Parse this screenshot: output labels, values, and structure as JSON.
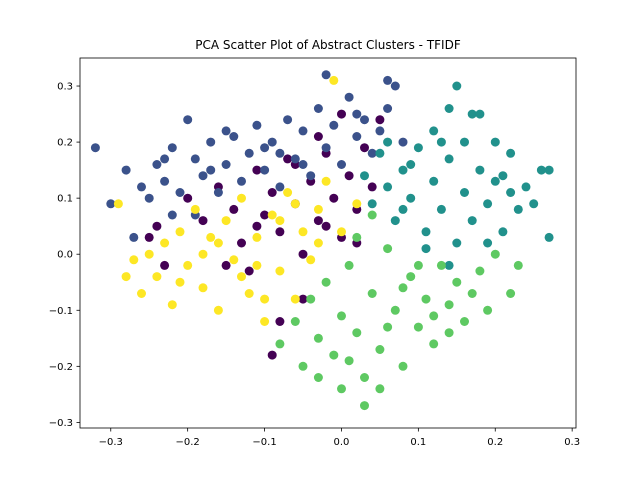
{
  "chart_data": {
    "type": "scatter",
    "title": "PCA Scatter Plot of Abstract Clusters - TFIDF",
    "xlabel": "",
    "ylabel": "",
    "xlim": [
      -0.34,
      0.305
    ],
    "ylim": [
      -0.31,
      0.35
    ],
    "x_ticks": [
      -0.3,
      -0.2,
      -0.1,
      0.0,
      0.1,
      0.2,
      0.3
    ],
    "x_tick_labels": [
      "−0.3",
      "−0.2",
      "−0.1",
      "0.0",
      "0.1",
      "0.2",
      "0.3"
    ],
    "y_ticks": [
      -0.3,
      -0.2,
      -0.1,
      0.0,
      0.1,
      0.2,
      0.3
    ],
    "y_tick_labels": [
      "−0.3",
      "−0.2",
      "−0.1",
      "0.0",
      "0.1",
      "0.2",
      "0.3"
    ],
    "grid": false,
    "legend": "none",
    "series": [
      {
        "color": "#440154",
        "points": [
          [
            -0.25,
            0.03
          ],
          [
            -0.24,
            0.05
          ],
          [
            -0.23,
            -0.02
          ],
          [
            -0.2,
            0.1
          ],
          [
            -0.18,
            0.06
          ],
          [
            -0.16,
            0.12
          ],
          [
            -0.14,
            0.08
          ],
          [
            -0.13,
            0.02
          ],
          [
            -0.12,
            -0.03
          ],
          [
            -0.11,
            0.15
          ],
          [
            -0.1,
            0.07
          ],
          [
            -0.09,
            0.11
          ],
          [
            -0.08,
            0.04
          ],
          [
            -0.07,
            0.17
          ],
          [
            -0.06,
            0.09
          ],
          [
            -0.05,
            0.0
          ],
          [
            -0.04,
            0.13
          ],
          [
            -0.03,
            0.06
          ],
          [
            -0.02,
            0.18
          ],
          [
            -0.01,
            0.1
          ],
          [
            0.0,
            0.03
          ],
          [
            0.01,
            0.14
          ],
          [
            0.02,
            0.08
          ],
          [
            0.03,
            0.19
          ],
          [
            0.04,
            0.12
          ],
          [
            -0.08,
            -0.12
          ],
          [
            -0.09,
            -0.18
          ],
          [
            -0.05,
            -0.08
          ],
          [
            -0.03,
            0.21
          ],
          [
            -0.06,
            0.16
          ],
          [
            0.0,
            0.25
          ],
          [
            0.05,
            0.24
          ],
          [
            -0.15,
            -0.02
          ],
          [
            -0.11,
            0.05
          ],
          [
            -0.02,
            0.05
          ],
          [
            0.02,
            0.02
          ]
        ]
      },
      {
        "color": "#3b528b",
        "points": [
          [
            -0.32,
            0.19
          ],
          [
            -0.3,
            0.09
          ],
          [
            -0.28,
            0.15
          ],
          [
            -0.27,
            0.03
          ],
          [
            -0.26,
            0.12
          ],
          [
            -0.25,
            0.1
          ],
          [
            -0.24,
            0.16
          ],
          [
            -0.23,
            0.13
          ],
          [
            -0.22,
            0.19
          ],
          [
            -0.21,
            0.11
          ],
          [
            -0.2,
            0.24
          ],
          [
            -0.19,
            0.17
          ],
          [
            -0.18,
            0.14
          ],
          [
            -0.17,
            0.2
          ],
          [
            -0.16,
            0.11
          ],
          [
            -0.15,
            0.16
          ],
          [
            -0.14,
            0.21
          ],
          [
            -0.13,
            0.13
          ],
          [
            -0.12,
            0.18
          ],
          [
            -0.11,
            0.23
          ],
          [
            -0.1,
            0.15
          ],
          [
            -0.09,
            0.2
          ],
          [
            -0.08,
            0.12
          ],
          [
            -0.07,
            0.24
          ],
          [
            -0.06,
            0.17
          ],
          [
            -0.05,
            0.22
          ],
          [
            -0.04,
            0.14
          ],
          [
            -0.03,
            0.26
          ],
          [
            -0.02,
            0.19
          ],
          [
            -0.01,
            0.23
          ],
          [
            0.0,
            0.16
          ],
          [
            0.01,
            0.28
          ],
          [
            0.02,
            0.21
          ],
          [
            0.03,
            0.24
          ],
          [
            0.04,
            0.18
          ],
          [
            0.05,
            0.22
          ],
          [
            0.06,
            0.26
          ],
          [
            -0.02,
            0.32
          ],
          [
            0.06,
            0.31
          ],
          [
            0.07,
            0.3
          ],
          [
            -0.19,
            0.07
          ],
          [
            -0.22,
            0.07
          ],
          [
            -0.17,
            0.15
          ],
          [
            -0.1,
            0.19
          ],
          [
            -0.05,
            0.16
          ],
          [
            0.08,
            0.2
          ],
          [
            -0.23,
            0.17
          ],
          [
            -0.15,
            0.22
          ],
          [
            -0.08,
            0.18
          ],
          [
            0.02,
            0.25
          ]
        ]
      },
      {
        "color": "#21918c",
        "points": [
          [
            0.03,
            0.14
          ],
          [
            0.04,
            0.09
          ],
          [
            0.05,
            0.18
          ],
          [
            0.06,
            0.12
          ],
          [
            0.07,
            0.06
          ],
          [
            0.08,
            0.15
          ],
          [
            0.09,
            0.1
          ],
          [
            0.1,
            0.19
          ],
          [
            0.11,
            0.04
          ],
          [
            0.12,
            0.13
          ],
          [
            0.13,
            0.08
          ],
          [
            0.14,
            0.17
          ],
          [
            0.15,
            0.02
          ],
          [
            0.16,
            0.11
          ],
          [
            0.17,
            0.06
          ],
          [
            0.18,
            0.15
          ],
          [
            0.19,
            0.09
          ],
          [
            0.2,
            0.13
          ],
          [
            0.21,
            0.04
          ],
          [
            0.22,
            0.11
          ],
          [
            0.23,
            0.08
          ],
          [
            0.24,
            0.12
          ],
          [
            0.25,
            0.09
          ],
          [
            0.26,
            0.15
          ],
          [
            0.27,
            0.15
          ],
          [
            0.27,
            0.03
          ],
          [
            0.15,
            0.3
          ],
          [
            0.14,
            0.26
          ],
          [
            0.17,
            0.25
          ],
          [
            0.18,
            0.25
          ],
          [
            0.12,
            0.22
          ],
          [
            0.09,
            0.16
          ],
          [
            0.06,
            0.2
          ],
          [
            0.11,
            0.01
          ],
          [
            0.14,
            -0.02
          ],
          [
            0.2,
            0.2
          ],
          [
            0.22,
            0.18
          ],
          [
            0.16,
            0.2
          ],
          [
            0.08,
            0.08
          ],
          [
            0.19,
            0.02
          ],
          [
            0.21,
            0.14
          ],
          [
            0.13,
            0.2
          ]
        ]
      },
      {
        "color": "#5ec962",
        "points": [
          [
            -0.08,
            -0.16
          ],
          [
            -0.06,
            -0.12
          ],
          [
            -0.05,
            -0.2
          ],
          [
            -0.04,
            -0.08
          ],
          [
            -0.03,
            -0.15
          ],
          [
            -0.02,
            -0.05
          ],
          [
            -0.01,
            -0.18
          ],
          [
            0.0,
            -0.11
          ],
          [
            0.01,
            -0.02
          ],
          [
            0.02,
            -0.14
          ],
          [
            0.03,
            -0.22
          ],
          [
            0.04,
            -0.07
          ],
          [
            0.05,
            -0.17
          ],
          [
            0.06,
            0.01
          ],
          [
            0.07,
            -0.1
          ],
          [
            0.08,
            -0.2
          ],
          [
            0.09,
            -0.04
          ],
          [
            0.1,
            -0.13
          ],
          [
            0.11,
            -0.08
          ],
          [
            0.12,
            -0.16
          ],
          [
            0.13,
            -0.02
          ],
          [
            0.14,
            -0.09
          ],
          [
            0.15,
            -0.05
          ],
          [
            0.16,
            -0.12
          ],
          [
            0.17,
            -0.07
          ],
          [
            0.18,
            -0.03
          ],
          [
            0.19,
            -0.1
          ],
          [
            0.2,
            0.0
          ],
          [
            0.22,
            -0.07
          ],
          [
            0.23,
            -0.02
          ],
          [
            0.03,
            -0.27
          ],
          [
            0.0,
            -0.24
          ],
          [
            0.04,
            0.07
          ],
          [
            0.02,
            0.03
          ],
          [
            0.06,
            -0.13
          ],
          [
            0.08,
            -0.06
          ],
          [
            -0.03,
            -0.22
          ],
          [
            0.05,
            -0.24
          ],
          [
            0.1,
            -0.02
          ],
          [
            0.12,
            -0.11
          ],
          [
            0.14,
            -0.14
          ],
          [
            0.01,
            -0.19
          ]
        ]
      },
      {
        "color": "#fde725",
        "points": [
          [
            -0.29,
            0.09
          ],
          [
            -0.28,
            -0.04
          ],
          [
            -0.27,
            -0.01
          ],
          [
            -0.26,
            -0.07
          ],
          [
            -0.25,
            0.0
          ],
          [
            -0.24,
            -0.04
          ],
          [
            -0.23,
            0.02
          ],
          [
            -0.22,
            -0.09
          ],
          [
            -0.21,
            0.04
          ],
          [
            -0.2,
            -0.02
          ],
          [
            -0.19,
            0.08
          ],
          [
            -0.18,
            -0.06
          ],
          [
            -0.17,
            0.03
          ],
          [
            -0.16,
            -0.1
          ],
          [
            -0.15,
            0.06
          ],
          [
            -0.14,
            -0.01
          ],
          [
            -0.13,
            0.1
          ],
          [
            -0.12,
            -0.07
          ],
          [
            -0.11,
            0.03
          ],
          [
            -0.1,
            -0.12
          ],
          [
            -0.09,
            0.07
          ],
          [
            -0.08,
            -0.03
          ],
          [
            -0.07,
            0.11
          ],
          [
            -0.06,
            -0.08
          ],
          [
            -0.05,
            0.04
          ],
          [
            -0.04,
            -0.01
          ],
          [
            -0.03,
            0.08
          ],
          [
            -0.02,
            0.13
          ],
          [
            0.0,
            0.04
          ],
          [
            0.02,
            0.09
          ],
          [
            -0.01,
            0.31
          ],
          [
            -0.06,
            0.09
          ],
          [
            -0.11,
            -0.02
          ],
          [
            -0.16,
            0.02
          ],
          [
            -0.21,
            -0.05
          ],
          [
            -0.13,
            -0.04
          ],
          [
            -0.08,
            0.06
          ],
          [
            -0.03,
            0.02
          ],
          [
            -0.18,
            0.0
          ],
          [
            -0.1,
            -0.08
          ]
        ]
      }
    ]
  }
}
